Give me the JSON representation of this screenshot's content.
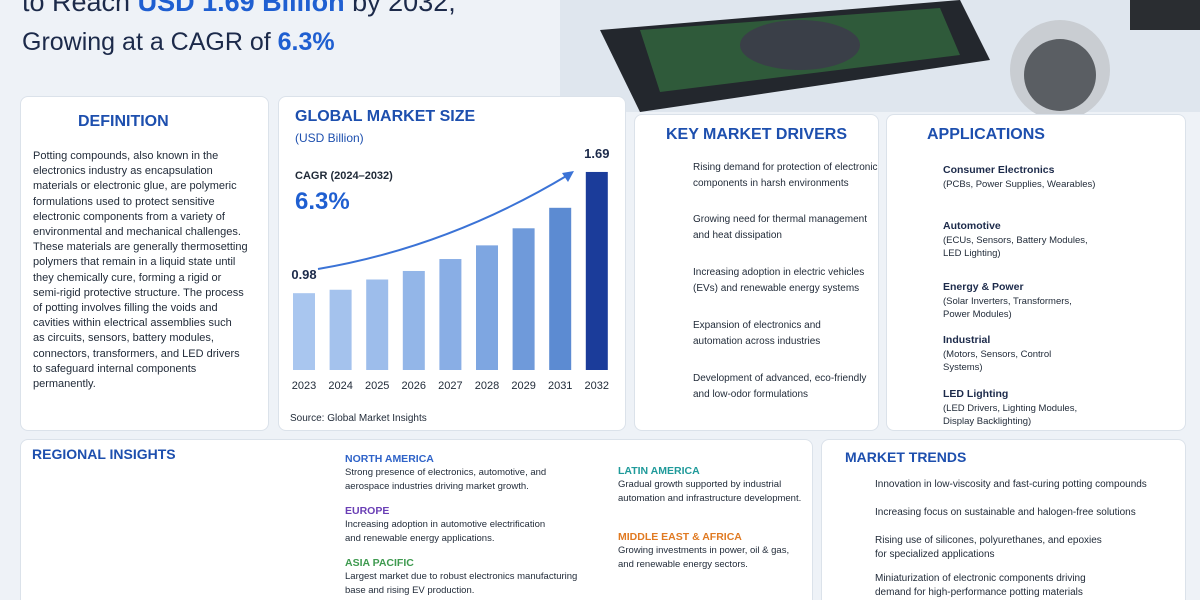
{
  "header": {
    "line1": [
      "to Reach ",
      "USD 1.69 Billion",
      " by 2032,"
    ],
    "line2": [
      "Growing at a CAGR of ",
      "6.3%"
    ]
  },
  "definition": {
    "title": "DEFINITION",
    "lines": [
      "Potting compounds, also known in the",
      "electronics industry as encapsulation",
      "materials or electronic glue, are polymeric",
      "formulations used to protect sensitive",
      "electronic components from a variety of",
      "environmental and mechanical challenges.",
      "These materials are generally thermosetting",
      "polymers that remain in a liquid state until",
      "they chemically cure, forming a rigid or",
      "semi-rigid protective structure. The process",
      "of potting involves filling the voids and",
      "cavities within electrical assemblies such",
      "as circuits, sensors, battery modules,",
      "connectors, transformers, and LED drivers",
      "to safeguard internal components",
      "permanently."
    ]
  },
  "chart_data": {
    "type": "bar",
    "title": "GLOBAL MARKET SIZE",
    "subtitle": "(USD Billion)",
    "cagr_label": "CAGR (2024–2032)",
    "cagr_value": "6.3%",
    "source": "Source: Global Market Insights",
    "categories": [
      "2023",
      "2024",
      "2025",
      "2026",
      "2027",
      "2028",
      "2029",
      "2031",
      "2032"
    ],
    "values": [
      0.98,
      1.0,
      1.06,
      1.11,
      1.18,
      1.26,
      1.36,
      1.48,
      1.69
    ],
    "value_labels": [
      "0.98",
      null,
      null,
      null,
      null,
      null,
      null,
      null,
      "1.69"
    ],
    "colors": [
      "#a9c6ef",
      "#a4c2ed",
      "#9dbdeb",
      "#93b6e8",
      "#89aee5",
      "#7ea6e1",
      "#6f9ada",
      "#5c8bd2",
      "#1b3c9a"
    ],
    "ylim": [
      0.53,
      1.76
    ]
  },
  "drivers": {
    "title": "KEY MARKET DRIVERS",
    "items": [
      [
        "Rising demand for protection of electronic",
        "components in harsh environments"
      ],
      [
        "Growing need for thermal management",
        "and heat dissipation"
      ],
      [
        "Increasing adoption in electric vehicles",
        "(EVs) and renewable energy systems"
      ],
      [
        "Expansion of electronics and",
        "automation across industries"
      ],
      [
        "Development of advanced, eco-friendly",
        "and low-odor formulations"
      ]
    ]
  },
  "applications": {
    "title": "APPLICATIONS",
    "items": [
      {
        "name": "Consumer Electronics",
        "lines": [
          "(PCBs, Power Supplies, Wearables)"
        ]
      },
      {
        "name": "Automotive",
        "lines": [
          "(ECUs, Sensors, Battery Modules,",
          "LED Lighting)"
        ]
      },
      {
        "name": "Energy & Power",
        "lines": [
          "(Solar Inverters, Transformers,",
          "Power Modules)"
        ]
      },
      {
        "name": "Industrial",
        "lines": [
          "(Motors, Sensors, Control",
          "Systems)"
        ]
      },
      {
        "name": "LED Lighting",
        "lines": [
          "(LED Drivers, Lighting Modules,",
          "Display Backlighting)"
        ]
      }
    ]
  },
  "regional": {
    "title": "REGIONAL INSIGHTS",
    "regions": [
      {
        "name": "NORTH AMERICA",
        "color": "#2f63c8",
        "lines": [
          "Strong presence of electronics, automotive, and",
          "aerospace industries driving market growth."
        ]
      },
      {
        "name": "EUROPE",
        "color": "#6a3fb5",
        "lines": [
          "Increasing adoption in automotive electrification",
          "and renewable energy applications."
        ]
      },
      {
        "name": "ASIA PACIFIC",
        "color": "#3e9a4f",
        "lines": [
          "Largest market due to robust electronics manufacturing",
          "base and rising EV production."
        ]
      },
      {
        "name": "LATIN AMERICA",
        "color": "#1f9a9a",
        "lines": [
          "Gradual growth supported by industrial",
          "automation and infrastructure development."
        ]
      },
      {
        "name": "MIDDLE EAST & AFRICA",
        "color": "#e07a22",
        "lines": [
          "Growing investments in power, oil & gas,",
          "and renewable energy sectors."
        ]
      }
    ]
  },
  "trends": {
    "title": "MARKET TRENDS",
    "items": [
      [
        "Innovation in low-viscosity and fast-curing potting compounds"
      ],
      [
        "Increasing focus on sustainable and halogen-free solutions"
      ],
      [
        "Rising use of silicones, polyurethanes, and epoxies",
        "for specialized applications"
      ],
      [
        "Miniaturization of electronic components driving",
        "demand for high-performance potting materials"
      ]
    ]
  }
}
